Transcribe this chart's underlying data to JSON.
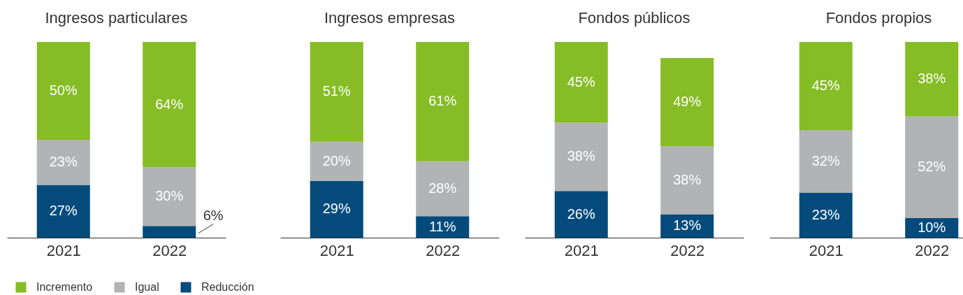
{
  "chart_data": [
    {
      "type": "bar",
      "title": "Ingresos particulares",
      "categories": [
        "2021",
        "2022"
      ],
      "stacked": true,
      "legend": "bottom",
      "series": [
        {
          "name": "Reducción",
          "color": "#044b7c",
          "values": [
            27,
            6
          ],
          "value_labels": [
            "27%",
            "6%"
          ]
        },
        {
          "name": "Igual",
          "color": "#b2b3b5",
          "values": [
            23,
            30
          ],
          "value_labels": [
            "23%",
            "30%"
          ]
        },
        {
          "name": "Incremento",
          "color": "#86bc25",
          "values": [
            50,
            64
          ],
          "value_labels": [
            "50%",
            "64%"
          ]
        }
      ]
    },
    {
      "type": "bar",
      "title": "Ingresos empresas",
      "categories": [
        "2021",
        "2022"
      ],
      "stacked": true,
      "series": [
        {
          "name": "Reducción",
          "color": "#044b7c",
          "values": [
            29,
            11
          ],
          "value_labels": [
            "29%",
            "11%"
          ]
        },
        {
          "name": "Igual",
          "color": "#b2b3b5",
          "values": [
            20,
            28
          ],
          "value_labels": [
            "20%",
            "28%"
          ]
        },
        {
          "name": "Incremento",
          "color": "#86bc25",
          "values": [
            51,
            61
          ],
          "value_labels": [
            "51%",
            "61%"
          ]
        }
      ]
    },
    {
      "type": "bar",
      "title": "Fondos públicos",
      "categories": [
        "2021",
        "2022"
      ],
      "stacked": true,
      "series": [
        {
          "name": "Reducción",
          "color": "#044b7c",
          "values": [
            26,
            13
          ],
          "value_labels": [
            "26%",
            "13%"
          ]
        },
        {
          "name": "Igual",
          "color": "#b2b3b5",
          "values": [
            38,
            38
          ],
          "value_labels": [
            "38%",
            "38%"
          ]
        },
        {
          "name": "Incremento",
          "color": "#86bc25",
          "values": [
            45,
            49
          ],
          "value_labels": [
            "45%",
            "49%"
          ]
        }
      ]
    },
    {
      "type": "bar",
      "title": "Fondos propios",
      "categories": [
        "2021",
        "2022"
      ],
      "stacked": true,
      "series": [
        {
          "name": "Reducción",
          "color": "#044b7c",
          "values": [
            23,
            10
          ],
          "value_labels": [
            "23%",
            "10%"
          ]
        },
        {
          "name": "Igual",
          "color": "#b2b3b5",
          "values": [
            32,
            52
          ],
          "value_labels": [
            "32%",
            "52%"
          ]
        },
        {
          "name": "Incremento",
          "color": "#86bc25",
          "values": [
            45,
            38
          ],
          "value_labels": [
            "45%",
            "38%"
          ]
        }
      ]
    }
  ]
}
